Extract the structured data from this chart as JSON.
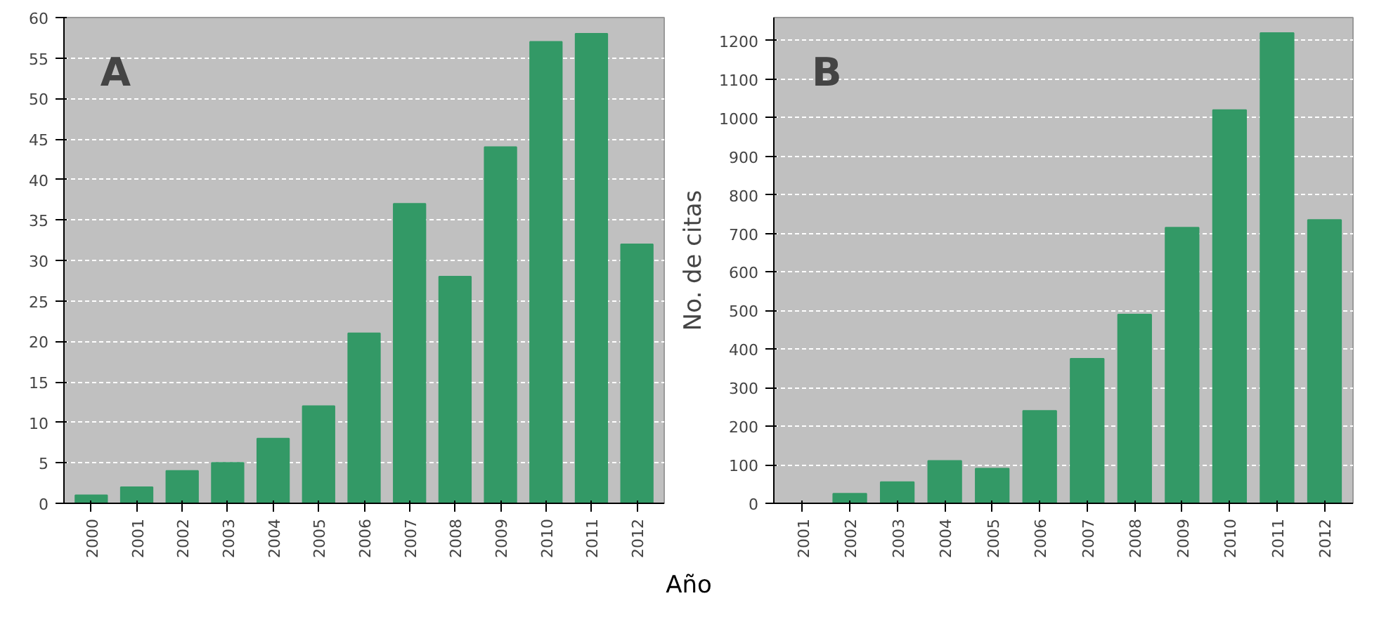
{
  "chart_data": [
    {
      "type": "bar",
      "title": "A",
      "xlabel": "Año",
      "categories": [
        "2000",
        "2001",
        "2002",
        "2003",
        "2004",
        "2005",
        "2006",
        "2007",
        "2008",
        "2009",
        "2010",
        "2011",
        "2012"
      ],
      "values": [
        1,
        2,
        4,
        5,
        8,
        12,
        21,
        37,
        28,
        44,
        57,
        58,
        32
      ],
      "color": "#339966",
      "ylim": [
        0,
        60
      ],
      "yticks": [
        0,
        5,
        10,
        15,
        20,
        25,
        30,
        35,
        40,
        45,
        50,
        55,
        60
      ],
      "grid": "y"
    },
    {
      "type": "bar",
      "title": "B",
      "ylabel": "No. de citas",
      "categories": [
        "2001",
        "2002",
        "2003",
        "2004",
        "2005",
        "2006",
        "2007",
        "2008",
        "2009",
        "2010",
        "2011",
        "2012"
      ],
      "values": [
        0,
        25,
        55,
        110,
        90,
        240,
        375,
        490,
        715,
        1020,
        1220,
        735
      ],
      "color": "#339966",
      "ylim": [
        0,
        1260
      ],
      "yticks": [
        0,
        100,
        200,
        300,
        400,
        500,
        600,
        700,
        800,
        900,
        1000,
        1100,
        1200
      ],
      "grid": "y"
    }
  ]
}
